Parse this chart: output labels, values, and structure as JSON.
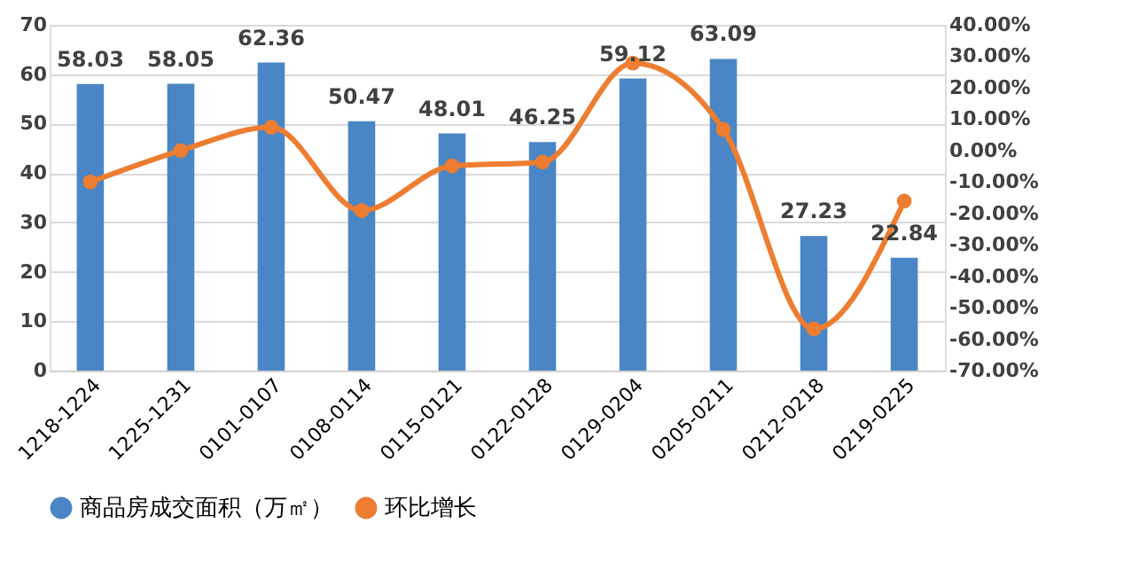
{
  "chart_data": {
    "type": "bar",
    "categories": [
      "1218-1224",
      "1225-1231",
      "0101-0107",
      "0108-0114",
      "0115-0121",
      "0122-0128",
      "0129-0204",
      "0205-0211",
      "0212-0218",
      "0219-0225"
    ],
    "series": [
      {
        "name": "商品房成交面积（万㎡）",
        "color": "#4a86c5",
        "values": [
          58.03,
          58.05,
          62.36,
          50.47,
          48.01,
          46.25,
          59.12,
          63.09,
          27.23,
          22.84
        ],
        "value_labels": [
          "58.03",
          "58.05",
          "62.36",
          "50.47",
          "48.01",
          "46.25",
          "59.12",
          "63.09",
          "27.23",
          "22.84"
        ]
      },
      {
        "name": "环比增长",
        "color": "#ed7d31",
        "type": "line",
        "axis": "y2",
        "marker": "circle",
        "line_style": "solid",
        "values": [
          -10.0,
          0.0,
          7.4,
          -19.1,
          -4.9,
          -3.7,
          27.8,
          6.7,
          -56.8,
          -16.1
        ]
      }
    ],
    "ylim": [
      0,
      70
    ],
    "yticks": [
      0,
      10,
      20,
      30,
      40,
      50,
      60,
      70
    ],
    "y2lim": [
      -70,
      40
    ],
    "y2ticks": [
      {
        "value": -70,
        "label": "-70.00%"
      },
      {
        "value": -60,
        "label": "-60.00%"
      },
      {
        "value": -50,
        "label": "-50.00%"
      },
      {
        "value": -40,
        "label": "-40.00%"
      },
      {
        "value": -30,
        "label": "-30.00%"
      },
      {
        "value": -20,
        "label": "-20.00%"
      },
      {
        "value": -10,
        "label": "-10.00%"
      },
      {
        "value": 0,
        "label": "0.00%"
      },
      {
        "value": 10,
        "label": "10.00%"
      },
      {
        "value": 20,
        "label": "20.00%"
      },
      {
        "value": 30,
        "label": "30.00%"
      },
      {
        "value": 40,
        "label": "40.00%"
      }
    ],
    "grid": "y",
    "legend": "bottom"
  }
}
